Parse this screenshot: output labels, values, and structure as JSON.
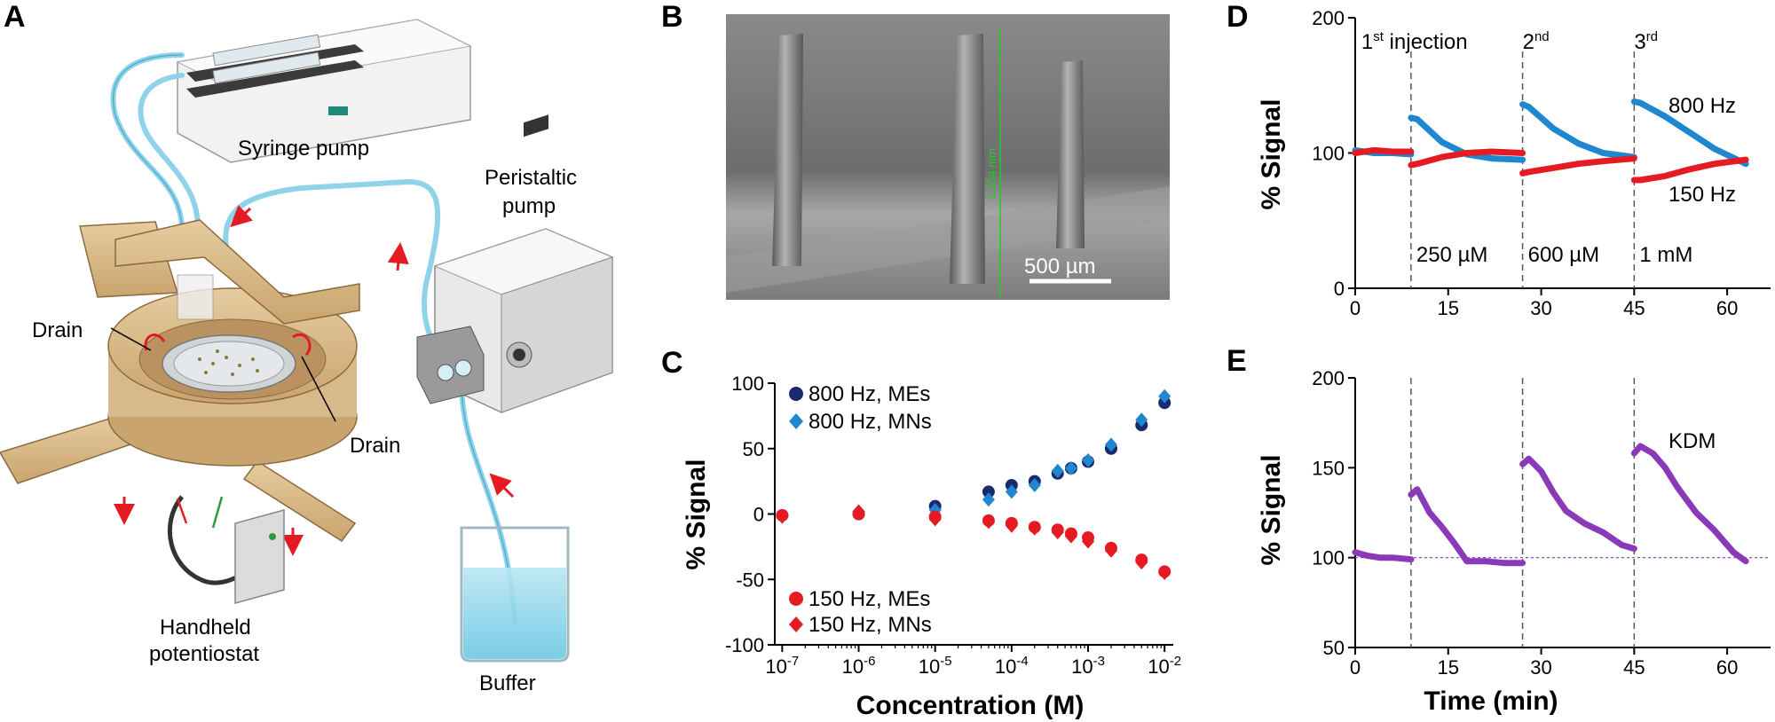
{
  "panels": {
    "a": "A",
    "b": "B",
    "c": "C",
    "d": "D",
    "e": "E"
  },
  "panel_a": {
    "syringe_pump": "Syringe pump",
    "peristaltic_pump_line1": "Peristaltic",
    "peristaltic_pump_line2": "pump",
    "drain_left": "Drain",
    "drain_right": "Drain",
    "potentiostat_line1": "Handheld",
    "potentiostat_line2": "potentiostat",
    "buffer": "Buffer"
  },
  "panel_b": {
    "scale_bar": "500 µm",
    "measure_label": "2.254 mm"
  },
  "colors": {
    "navy": "#1a2a6c",
    "blue": "#1f86d0",
    "red": "#e51b24",
    "purple": "#8a3ab9",
    "tubing": "#8fd3ea",
    "wood": "#d8b98a"
  },
  "chart_data": [
    {
      "id": "C",
      "type": "scatter",
      "xlabel": "Concentration (M)",
      "ylabel": "% Signal",
      "xscale": "log",
      "xlim": [
        8e-08,
        0.013
      ],
      "ylim": [
        -100,
        100
      ],
      "xtick_labels": [
        "10-7",
        "10-6",
        "10-5",
        "10-4",
        "10-3",
        "10-2"
      ],
      "xtick_values": [
        1e-07,
        1e-06,
        1e-05,
        0.0001,
        0.001,
        0.01
      ],
      "yticks": [
        -100,
        -50,
        0,
        50,
        100
      ],
      "legend_top": "top-left",
      "legend_bottom": "bottom-left",
      "series": [
        {
          "name": "800 Hz, MEs",
          "marker": "circle",
          "color": "#1a2a6c",
          "x": [
            1e-07,
            1e-06,
            1e-05,
            5e-05,
            0.0001,
            0.0002,
            0.0004,
            0.0006,
            0.001,
            0.002,
            0.005,
            0.01
          ],
          "y": [
            -1,
            0,
            6,
            17,
            22,
            25,
            31,
            35,
            40,
            50,
            68,
            85
          ]
        },
        {
          "name": "800 Hz, MNs",
          "marker": "diamond",
          "color": "#1f86d0",
          "x": [
            1e-07,
            1e-06,
            1e-05,
            5e-05,
            0.0001,
            0.0002,
            0.0004,
            0.0006,
            0.001,
            0.002,
            0.005,
            0.01
          ],
          "y": [
            -2,
            1,
            3,
            11,
            17,
            22,
            33,
            35,
            41,
            53,
            72,
            90
          ]
        },
        {
          "name": "150 Hz, MEs",
          "marker": "circle",
          "color": "#e51b24",
          "x": [
            1e-07,
            1e-06,
            1e-05,
            5e-05,
            0.0001,
            0.0002,
            0.0004,
            0.0006,
            0.001,
            0.002,
            0.005,
            0.01
          ],
          "y": [
            -1,
            0,
            -2,
            -5,
            -7,
            -10,
            -12,
            -15,
            -18,
            -26,
            -35,
            -44
          ]
        },
        {
          "name": "150 Hz, MNs",
          "marker": "diamond",
          "color": "#e51b24",
          "x": [
            1e-07,
            1e-06,
            1e-05,
            5e-05,
            0.0001,
            0.0002,
            0.0004,
            0.0006,
            0.001,
            0.002,
            0.005,
            0.01
          ],
          "y": [
            -2,
            2,
            -4,
            -6,
            -9,
            -11,
            -14,
            -17,
            -21,
            -28,
            -37,
            -45
          ]
        }
      ]
    },
    {
      "id": "D",
      "type": "line",
      "ylabel": "% Signal",
      "xlim": [
        0,
        67
      ],
      "ylim": [
        0,
        200
      ],
      "xticks": [
        0,
        15,
        30,
        45,
        60
      ],
      "yticks": [
        0,
        100,
        200
      ],
      "injection_times": [
        9,
        27,
        45
      ],
      "injection_labels": [
        {
          "main": "1",
          "sup": "st",
          "rest": " injection"
        },
        {
          "main": "2",
          "sup": "nd",
          "rest": ""
        },
        {
          "main": "3",
          "sup": "rd",
          "rest": ""
        }
      ],
      "concentration_labels": [
        "250 µM",
        "600 µM",
        "1 mM"
      ],
      "series": [
        {
          "name": "800 Hz",
          "color": "#1f86d0",
          "segments": [
            {
              "x": [
                0,
                3,
                6,
                9
              ],
              "y": [
                102,
                100,
                100,
                99
              ]
            },
            {
              "x": [
                9,
                10,
                14,
                18,
                22,
                27
              ],
              "y": [
                126,
                125,
                108,
                99,
                96,
                95
              ]
            },
            {
              "x": [
                27,
                28,
                32,
                36,
                40,
                45
              ],
              "y": [
                136,
                134,
                118,
                107,
                100,
                97
              ]
            },
            {
              "x": [
                45,
                46,
                50,
                54,
                58,
                63
              ],
              "y": [
                138,
                137,
                127,
                115,
                103,
                92
              ]
            }
          ]
        },
        {
          "name": "150 Hz",
          "color": "#e51b24",
          "segments": [
            {
              "x": [
                0,
                3,
                6,
                9
              ],
              "y": [
                100,
                102,
                101,
                101
              ]
            },
            {
              "x": [
                9,
                10,
                14,
                18,
                22,
                27
              ],
              "y": [
                91,
                92,
                97,
                100,
                101,
                100
              ]
            },
            {
              "x": [
                27,
                28,
                32,
                36,
                40,
                45
              ],
              "y": [
                85,
                86,
                89,
                92,
                94,
                96
              ]
            },
            {
              "x": [
                45,
                46,
                50,
                54,
                58,
                63
              ],
              "y": [
                80,
                80,
                83,
                88,
                92,
                95
              ]
            }
          ]
        }
      ]
    },
    {
      "id": "E",
      "type": "line",
      "xlabel": "Time (min)",
      "ylabel": "% Signal",
      "xlim": [
        0,
        67
      ],
      "ylim": [
        50,
        200
      ],
      "xticks": [
        0,
        15,
        30,
        45,
        60
      ],
      "yticks": [
        50,
        100,
        150,
        200
      ],
      "injection_times": [
        9,
        27,
        45
      ],
      "baseline": 100,
      "series": [
        {
          "name": "KDM",
          "color": "#8a3ab9",
          "segments": [
            {
              "x": [
                0,
                2,
                4,
                6,
                9
              ],
              "y": [
                103,
                101,
                100,
                100,
                99
              ]
            },
            {
              "x": [
                9,
                10,
                12,
                14,
                16,
                18,
                21,
                24,
                27
              ],
              "y": [
                135,
                138,
                125,
                117,
                108,
                98,
                98,
                97,
                97
              ]
            },
            {
              "x": [
                27,
                28,
                30,
                32,
                34,
                37,
                40,
                43,
                45
              ],
              "y": [
                152,
                155,
                148,
                136,
                126,
                119,
                114,
                107,
                105
              ]
            },
            {
              "x": [
                45,
                46,
                48,
                50,
                52,
                55,
                58,
                61,
                63
              ],
              "y": [
                158,
                162,
                158,
                150,
                139,
                125,
                115,
                103,
                98
              ]
            }
          ]
        }
      ]
    }
  ]
}
